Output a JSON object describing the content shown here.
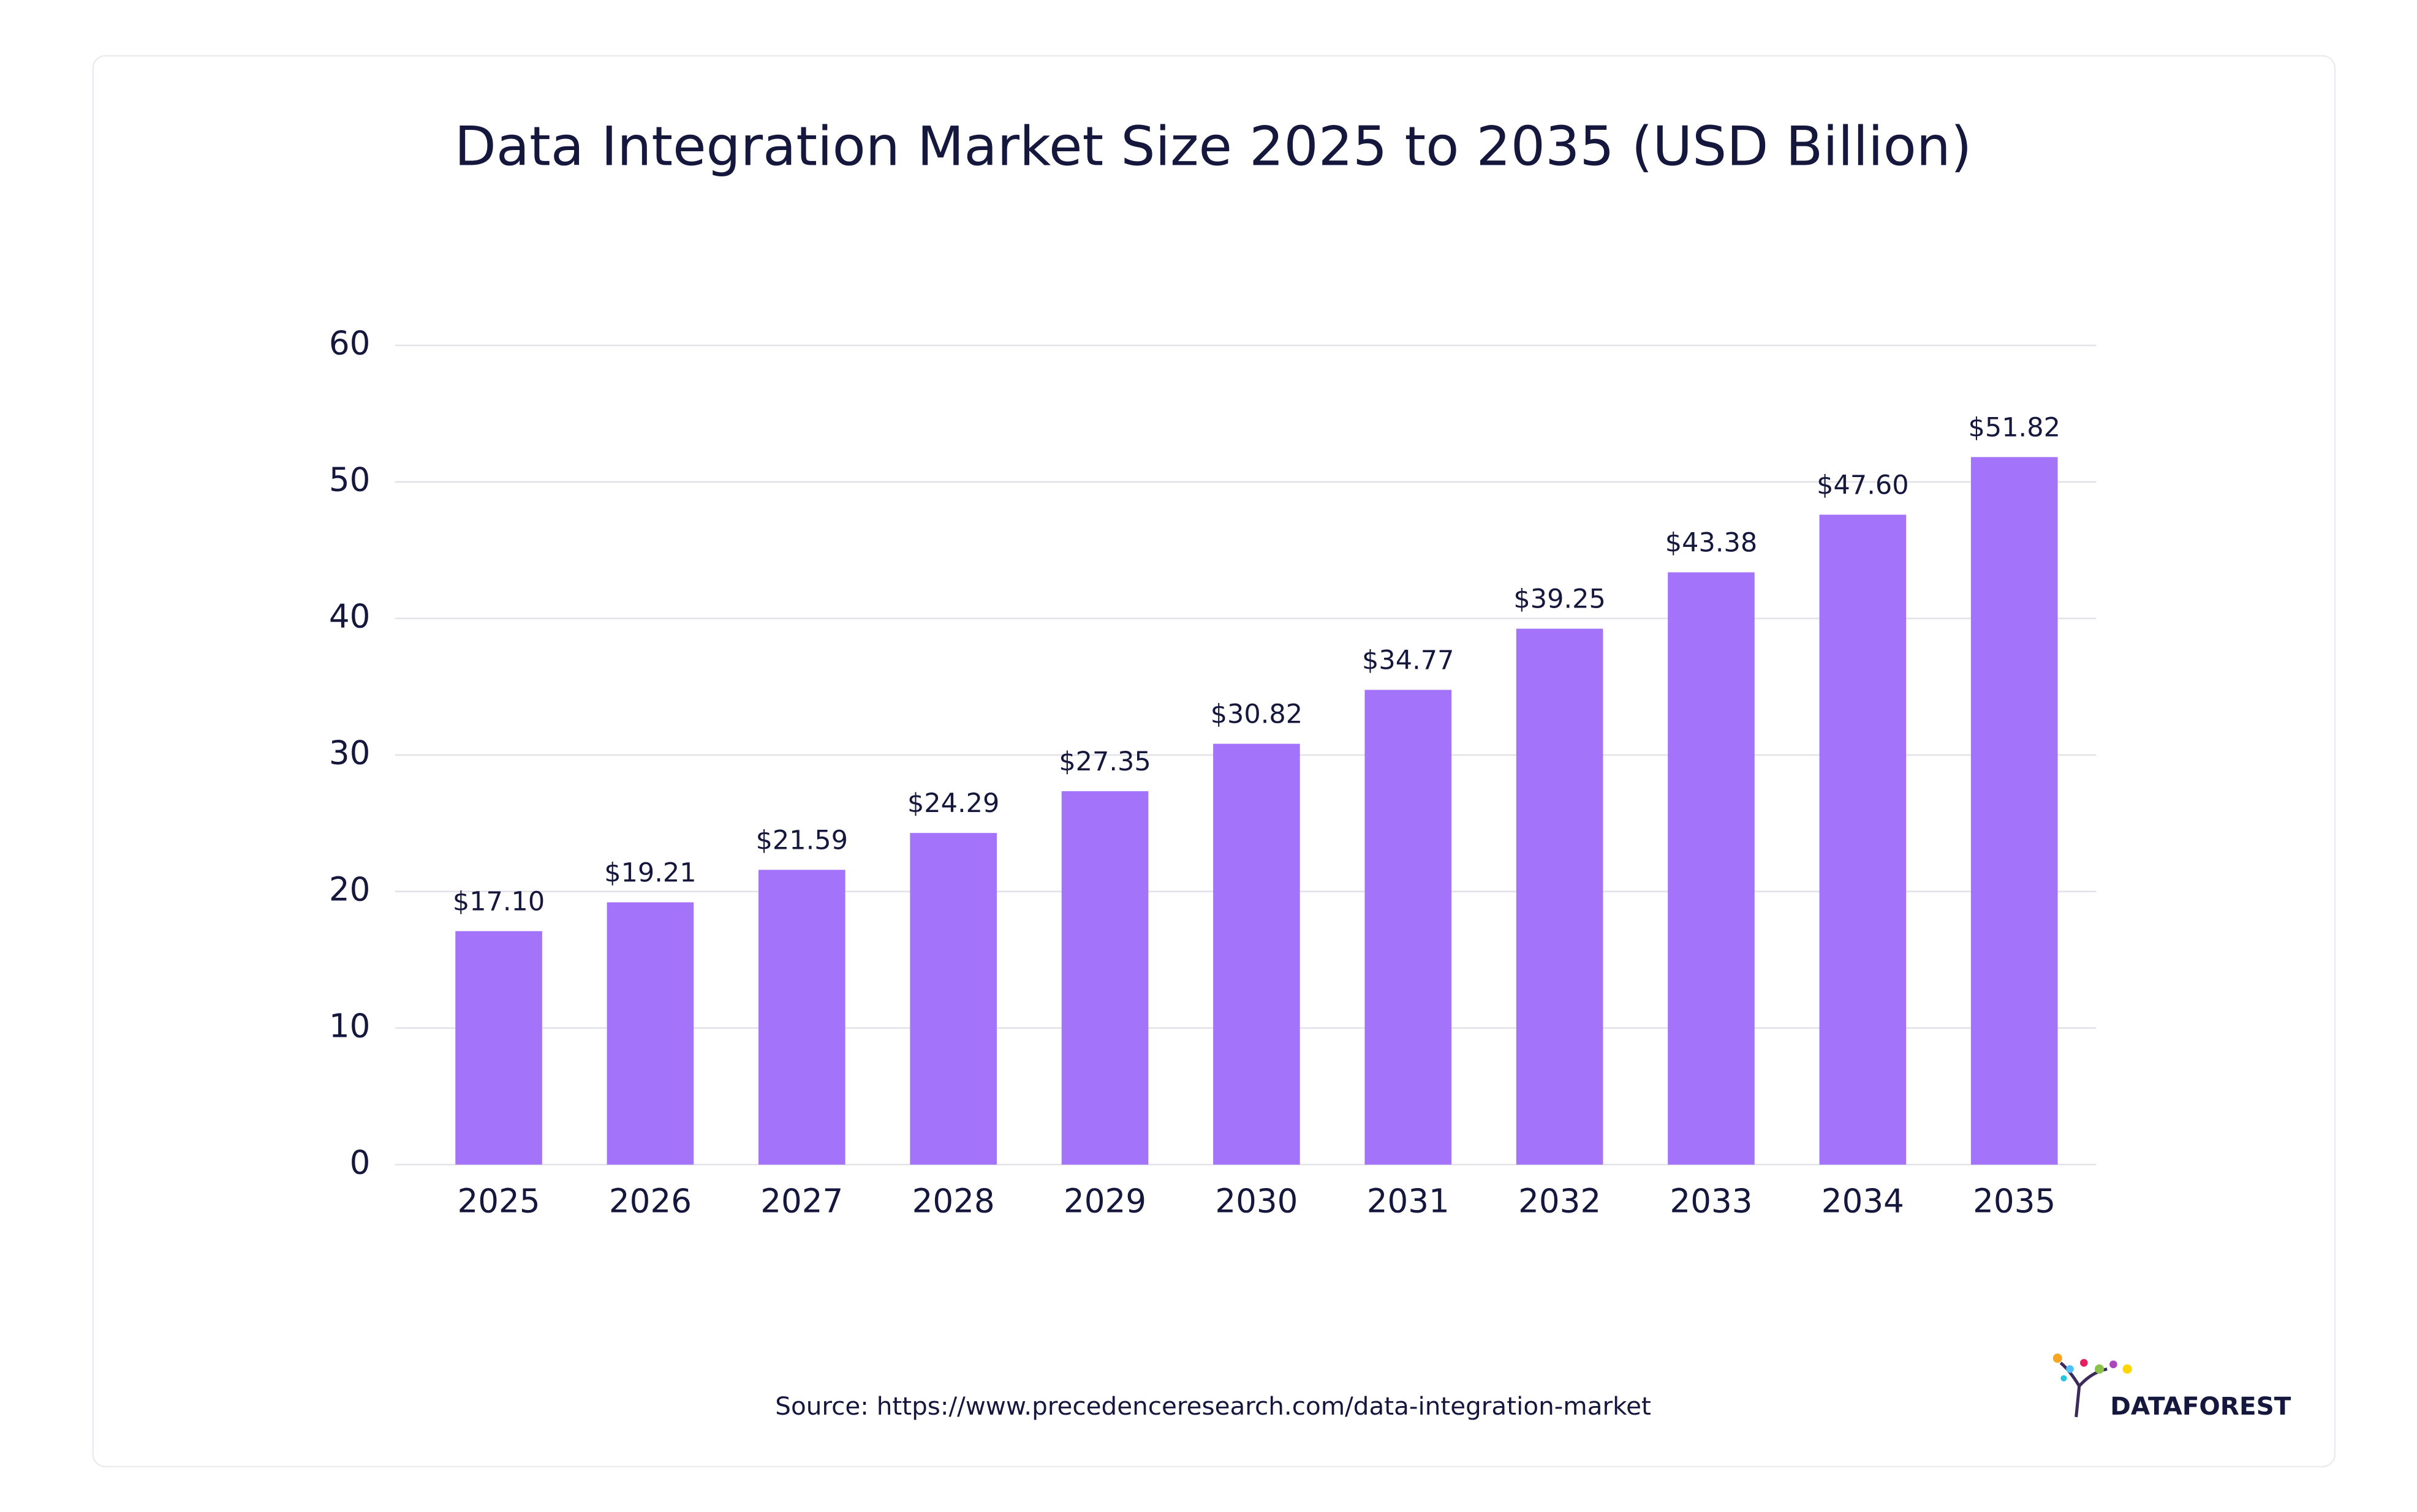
{
  "chart_data": {
    "type": "bar",
    "title": "Data Integration Market Size 2025 to 2035 (USD Billion)",
    "categories": [
      "2025",
      "2026",
      "2027",
      "2028",
      "2029",
      "2030",
      "2031",
      "2032",
      "2033",
      "2034",
      "2035"
    ],
    "values": [
      17.1,
      19.21,
      21.59,
      24.29,
      27.35,
      30.82,
      34.77,
      39.25,
      43.38,
      47.6,
      51.82
    ],
    "value_labels": [
      "$17.10",
      "$19.21",
      "$21.59",
      "$24.29",
      "$27.35",
      "$30.82",
      "$34.77",
      "$39.25",
      "$43.38",
      "$47.60",
      "$51.82"
    ],
    "color": "#a374f9",
    "ylim": [
      0,
      60
    ],
    "yticks": [
      0,
      10,
      20,
      30,
      40,
      50,
      60
    ],
    "grid": true,
    "source": "Source: https://www.precedenceresearch.com/data-integration-market",
    "logo": "DATAFOREST"
  }
}
